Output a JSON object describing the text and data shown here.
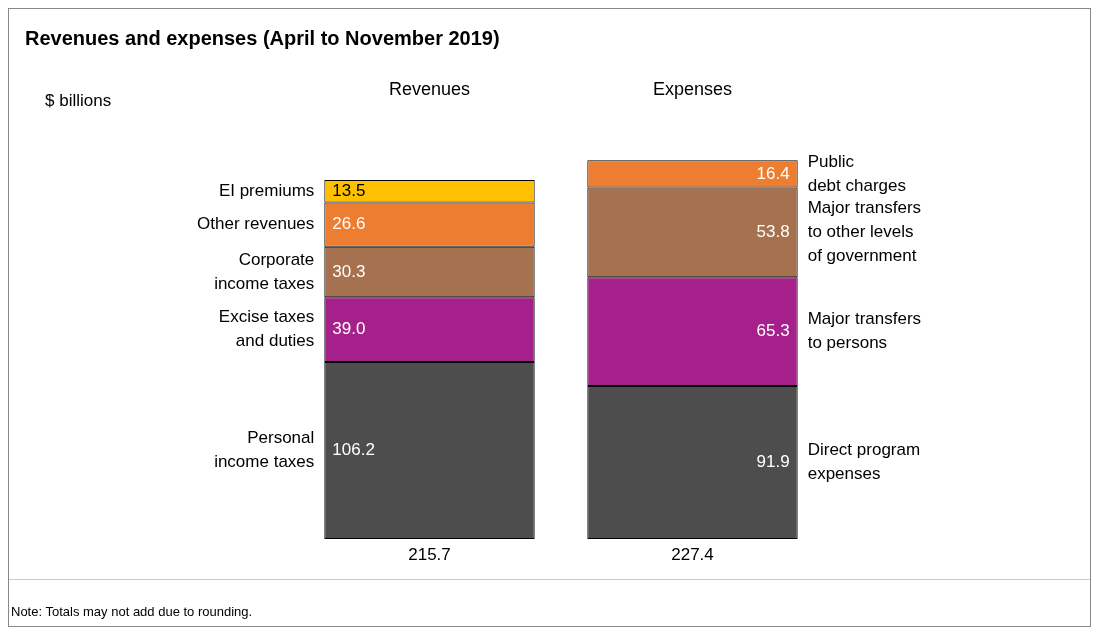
{
  "chart_data": {
    "type": "bar",
    "title": "Revenues and expenses (April to November 2019)",
    "categories": [
      "Revenues",
      "Expenses"
    ],
    "stacked": true,
    "legend": false,
    "series": [
      {
        "name": "Personal\nincome taxes",
        "color": "#4d4d4d",
        "values": [
          106.2,
          null
        ],
        "value_labels": [
          "106.2",
          null
        ]
      },
      {
        "name": "Excise taxes\nand duties",
        "color": "#a6208b",
        "values": [
          39.0,
          null
        ],
        "value_labels": [
          "39.0",
          null
        ]
      },
      {
        "name": "Corporate\nincome taxes",
        "color": "#a5714f",
        "values": [
          30.3,
          null
        ],
        "value_labels": [
          "30.3",
          null
        ]
      },
      {
        "name": "Other revenues",
        "color": "#ed7d31",
        "values": [
          26.6,
          null
        ],
        "value_labels": [
          "26.6",
          null
        ]
      },
      {
        "name": "EI premiums",
        "color": "#ffc000",
        "values": [
          13.5,
          null
        ],
        "value_labels": [
          "13.5",
          null
        ]
      },
      {
        "name": "Direct program\nexpenses",
        "color": "#4d4d4d",
        "values": [
          null,
          91.9
        ],
        "value_labels": [
          null,
          "91.9"
        ]
      },
      {
        "name": "Major transfers\nto persons",
        "color": "#a6208b",
        "values": [
          null,
          65.3
        ],
        "value_labels": [
          null,
          "65.3"
        ]
      },
      {
        "name": "Major transfers\nto other levels\nof government",
        "color": "#a5714f",
        "values": [
          null,
          53.8
        ],
        "value_labels": [
          null,
          "53.8"
        ]
      },
      {
        "name": "Public\ndebt charges",
        "color": "#ed7d31",
        "values": [
          null,
          16.4
        ],
        "value_labels": [
          null,
          "16.4"
        ]
      }
    ],
    "totals": [
      "215.7",
      "227.4"
    ],
    "annotations": [
      "$ billions",
      "Note: Totals may not add due to rounding."
    ]
  }
}
